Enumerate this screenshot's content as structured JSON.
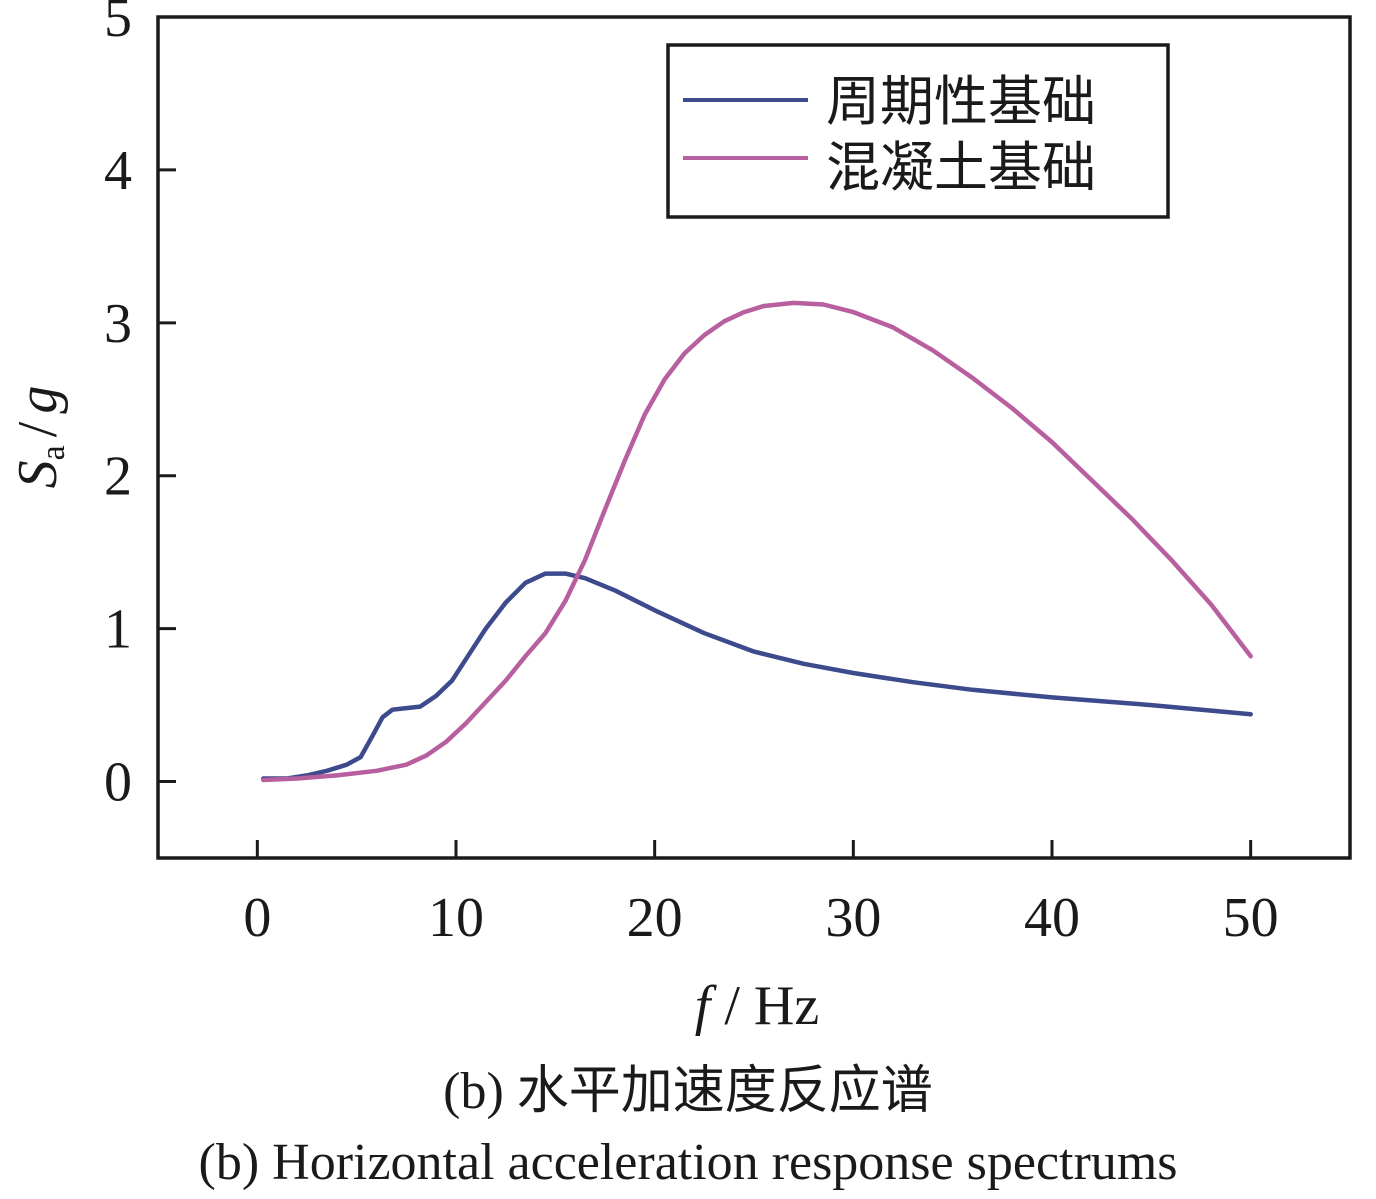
{
  "chart_data": {
    "type": "line",
    "xlabel_italic": "f",
    "xlabel_unit": "/ Hz",
    "ylabel_main": "S",
    "ylabel_sub": "a",
    "ylabel_rest": "/",
    "ylabel_g": "g",
    "xlim": [
      -5,
      55
    ],
    "ylim": [
      -0.5,
      5
    ],
    "x_ticks": [
      0,
      10,
      20,
      30,
      40,
      50
    ],
    "y_ticks": [
      0,
      1,
      2,
      3,
      4,
      5
    ],
    "grid": false,
    "legend_position": "top-right",
    "series": [
      {
        "name": "周期性基础",
        "color": "#3d4a8c",
        "points": [
          [
            0.3,
            0.02
          ],
          [
            1.5,
            0.02
          ],
          [
            2.5,
            0.04
          ],
          [
            3.5,
            0.07
          ],
          [
            4.5,
            0.11
          ],
          [
            5.2,
            0.16
          ],
          [
            5.8,
            0.3
          ],
          [
            6.3,
            0.42
          ],
          [
            6.8,
            0.47
          ],
          [
            7.5,
            0.48
          ],
          [
            8.2,
            0.49
          ],
          [
            9.0,
            0.56
          ],
          [
            9.8,
            0.66
          ],
          [
            10.5,
            0.8
          ],
          [
            11.5,
            1.0
          ],
          [
            12.5,
            1.17
          ],
          [
            13.5,
            1.3
          ],
          [
            14.5,
            1.36
          ],
          [
            15.5,
            1.36
          ],
          [
            16.5,
            1.33
          ],
          [
            18.0,
            1.25
          ],
          [
            20.0,
            1.12
          ],
          [
            22.5,
            0.97
          ],
          [
            25.0,
            0.85
          ],
          [
            27.5,
            0.77
          ],
          [
            30.0,
            0.71
          ],
          [
            33.0,
            0.65
          ],
          [
            36.0,
            0.6
          ],
          [
            40.0,
            0.55
          ],
          [
            45.0,
            0.5
          ],
          [
            50.0,
            0.44
          ]
        ]
      },
      {
        "name": "混凝土基础",
        "color": "#b85fa0",
        "points": [
          [
            0.3,
            0.01
          ],
          [
            2.0,
            0.02
          ],
          [
            4.0,
            0.04
          ],
          [
            6.0,
            0.07
          ],
          [
            7.5,
            0.11
          ],
          [
            8.5,
            0.17
          ],
          [
            9.5,
            0.26
          ],
          [
            10.5,
            0.38
          ],
          [
            11.5,
            0.52
          ],
          [
            12.5,
            0.66
          ],
          [
            13.5,
            0.82
          ],
          [
            14.5,
            0.97
          ],
          [
            15.5,
            1.18
          ],
          [
            16.5,
            1.45
          ],
          [
            17.5,
            1.78
          ],
          [
            18.5,
            2.1
          ],
          [
            19.5,
            2.4
          ],
          [
            20.5,
            2.63
          ],
          [
            21.5,
            2.8
          ],
          [
            22.5,
            2.92
          ],
          [
            23.5,
            3.01
          ],
          [
            24.5,
            3.07
          ],
          [
            25.5,
            3.11
          ],
          [
            27.0,
            3.13
          ],
          [
            28.5,
            3.12
          ],
          [
            30.0,
            3.07
          ],
          [
            32.0,
            2.97
          ],
          [
            34.0,
            2.82
          ],
          [
            36.0,
            2.64
          ],
          [
            38.0,
            2.44
          ],
          [
            40.0,
            2.22
          ],
          [
            42.0,
            1.97
          ],
          [
            44.0,
            1.72
          ],
          [
            46.0,
            1.45
          ],
          [
            48.0,
            1.16
          ],
          [
            50.0,
            0.82
          ]
        ]
      }
    ]
  },
  "caption": {
    "cn": "(b) 水平加速度反应谱",
    "en": "(b) Horizontal acceleration response spectrums"
  }
}
